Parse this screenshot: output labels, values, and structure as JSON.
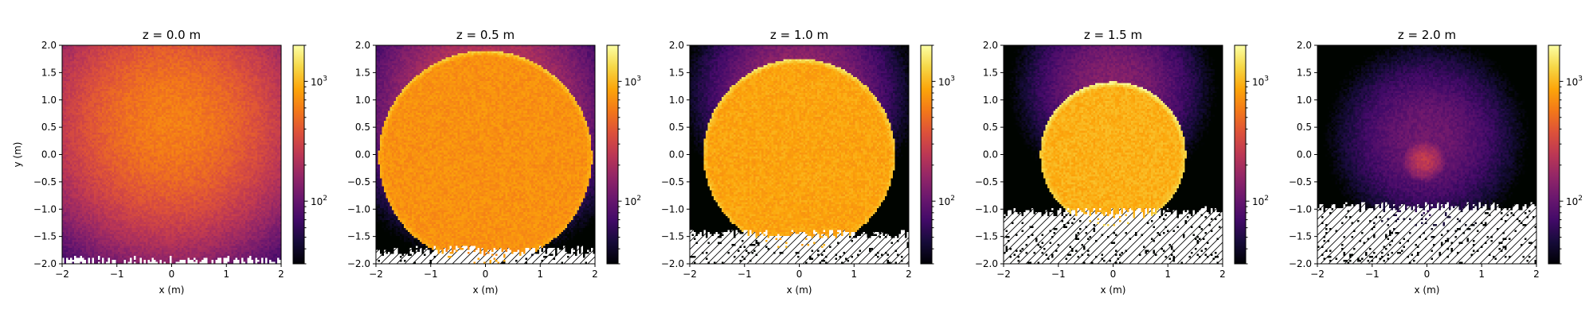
{
  "figure": {
    "type": "heatmap-panels"
  },
  "chart_data": [
    {
      "type": "heatmap",
      "title": "z = 0.0 m",
      "xlabel": "x (m)",
      "ylabel": "y (m)",
      "xlim": [
        -2,
        2
      ],
      "ylim": [
        -2,
        2
      ],
      "x_ticks": [
        -2,
        -1,
        0,
        1,
        2
      ],
      "y_ticks": [
        -2.0,
        -1.5,
        -1.0,
        -0.5,
        0.0,
        0.5,
        1.0,
        1.5,
        2.0
      ],
      "colorbar": {
        "scale": "log",
        "tick_labels": [
          "10^2",
          "10^3"
        ],
        "tick_values": [
          100,
          1000
        ],
        "range": [
          30,
          2000
        ],
        "colormap": "inferno"
      },
      "features": {
        "background_center": [
          0,
          0.6
        ],
        "background_level": 600,
        "background_falloff": 2.2,
        "disk_center": [
          0,
          0
        ],
        "disk_radius": 0,
        "disk_level": 0,
        "ring_level": 0,
        "hot_spot": null,
        "empty_below_y": -1.95,
        "hatched_empty": false
      }
    },
    {
      "type": "heatmap",
      "title": "z = 0.5 m",
      "xlabel": "x (m)",
      "ylabel": "",
      "xlim": [
        -2,
        2
      ],
      "ylim": [
        -2,
        2
      ],
      "x_ticks": [
        -2,
        -1,
        0,
        1,
        2
      ],
      "y_ticks": [
        -2.0,
        -1.5,
        -1.0,
        -0.5,
        0.0,
        0.5,
        1.0,
        1.5,
        2.0
      ],
      "colorbar": {
        "scale": "log",
        "tick_labels": [
          "10^2",
          "10^3"
        ],
        "tick_values": [
          100,
          1000
        ],
        "range": [
          30,
          2000
        ],
        "colormap": "inferno"
      },
      "features": {
        "background_center": [
          0,
          0.9
        ],
        "background_level": 300,
        "background_falloff": 1.9,
        "disk_center": [
          0,
          -0.05
        ],
        "disk_radius": 1.95,
        "disk_level": 720,
        "ring_level": 1300,
        "hot_spot": null,
        "empty_below_y": -1.75,
        "hatched_empty": true
      }
    },
    {
      "type": "heatmap",
      "title": "z = 1.0 m",
      "xlabel": "x (m)",
      "ylabel": "",
      "xlim": [
        -2,
        2
      ],
      "ylim": [
        -2,
        2
      ],
      "x_ticks": [
        -2,
        -1,
        0,
        1,
        2
      ],
      "y_ticks": [
        -2.0,
        -1.5,
        -1.0,
        -0.5,
        0.0,
        0.5,
        1.0,
        1.5,
        2.0
      ],
      "colorbar": {
        "scale": "log",
        "tick_labels": [
          "10^2",
          "10^3"
        ],
        "tick_values": [
          100,
          1000
        ],
        "range": [
          30,
          2000
        ],
        "colormap": "inferno"
      },
      "features": {
        "background_center": [
          0,
          1.1
        ],
        "background_level": 180,
        "background_falloff": 1.6,
        "disk_center": [
          0,
          0.0
        ],
        "disk_radius": 1.75,
        "disk_level": 850,
        "ring_level": 1600,
        "hot_spot": null,
        "empty_below_y": -1.45,
        "hatched_empty": true
      }
    },
    {
      "type": "heatmap",
      "title": "z = 1.5 m",
      "xlabel": "x (m)",
      "ylabel": "",
      "xlim": [
        -2,
        2
      ],
      "ylim": [
        -2,
        2
      ],
      "x_ticks": [
        -2,
        -1,
        0,
        1,
        2
      ],
      "y_ticks": [
        -2.0,
        -1.5,
        -1.0,
        -0.5,
        0.0,
        0.5,
        1.0,
        1.5,
        2.0
      ],
      "colorbar": {
        "scale": "log",
        "tick_labels": [
          "10^2",
          "10^3"
        ],
        "tick_values": [
          100,
          1000
        ],
        "range": [
          30,
          2000
        ],
        "colormap": "inferno"
      },
      "features": {
        "background_center": [
          0,
          1.2
        ],
        "background_level": 140,
        "background_falloff": 1.5,
        "disk_center": [
          0,
          0.0
        ],
        "disk_radius": 1.33,
        "disk_level": 950,
        "ring_level": 1900,
        "hot_spot": null,
        "empty_below_y": -1.05,
        "hatched_empty": true
      }
    },
    {
      "type": "heatmap",
      "title": "z = 2.0 m",
      "xlabel": "x (m)",
      "ylabel": "",
      "xlim": [
        -2,
        2
      ],
      "ylim": [
        -2,
        2
      ],
      "x_ticks": [
        -2,
        -1,
        0,
        1,
        2
      ],
      "y_ticks": [
        -2.0,
        -1.5,
        -1.0,
        -0.5,
        0.0,
        0.5,
        1.0,
        1.5,
        2.0
      ],
      "colorbar": {
        "scale": "log",
        "tick_labels": [
          "10^2",
          "10^3"
        ],
        "tick_values": [
          100,
          1000
        ],
        "range": [
          30,
          2000
        ],
        "colormap": "inferno"
      },
      "features": {
        "background_center": [
          0,
          0.3
        ],
        "background_level": 110,
        "background_falloff": 1.6,
        "disk_center": [
          0,
          0
        ],
        "disk_radius": 0,
        "disk_level": 0,
        "ring_level": 0,
        "hot_spot": {
          "center": [
            -0.05,
            -0.1
          ],
          "level": 260,
          "radius": 0.4
        },
        "empty_below_y": -0.95,
        "hatched_empty": true
      }
    }
  ]
}
